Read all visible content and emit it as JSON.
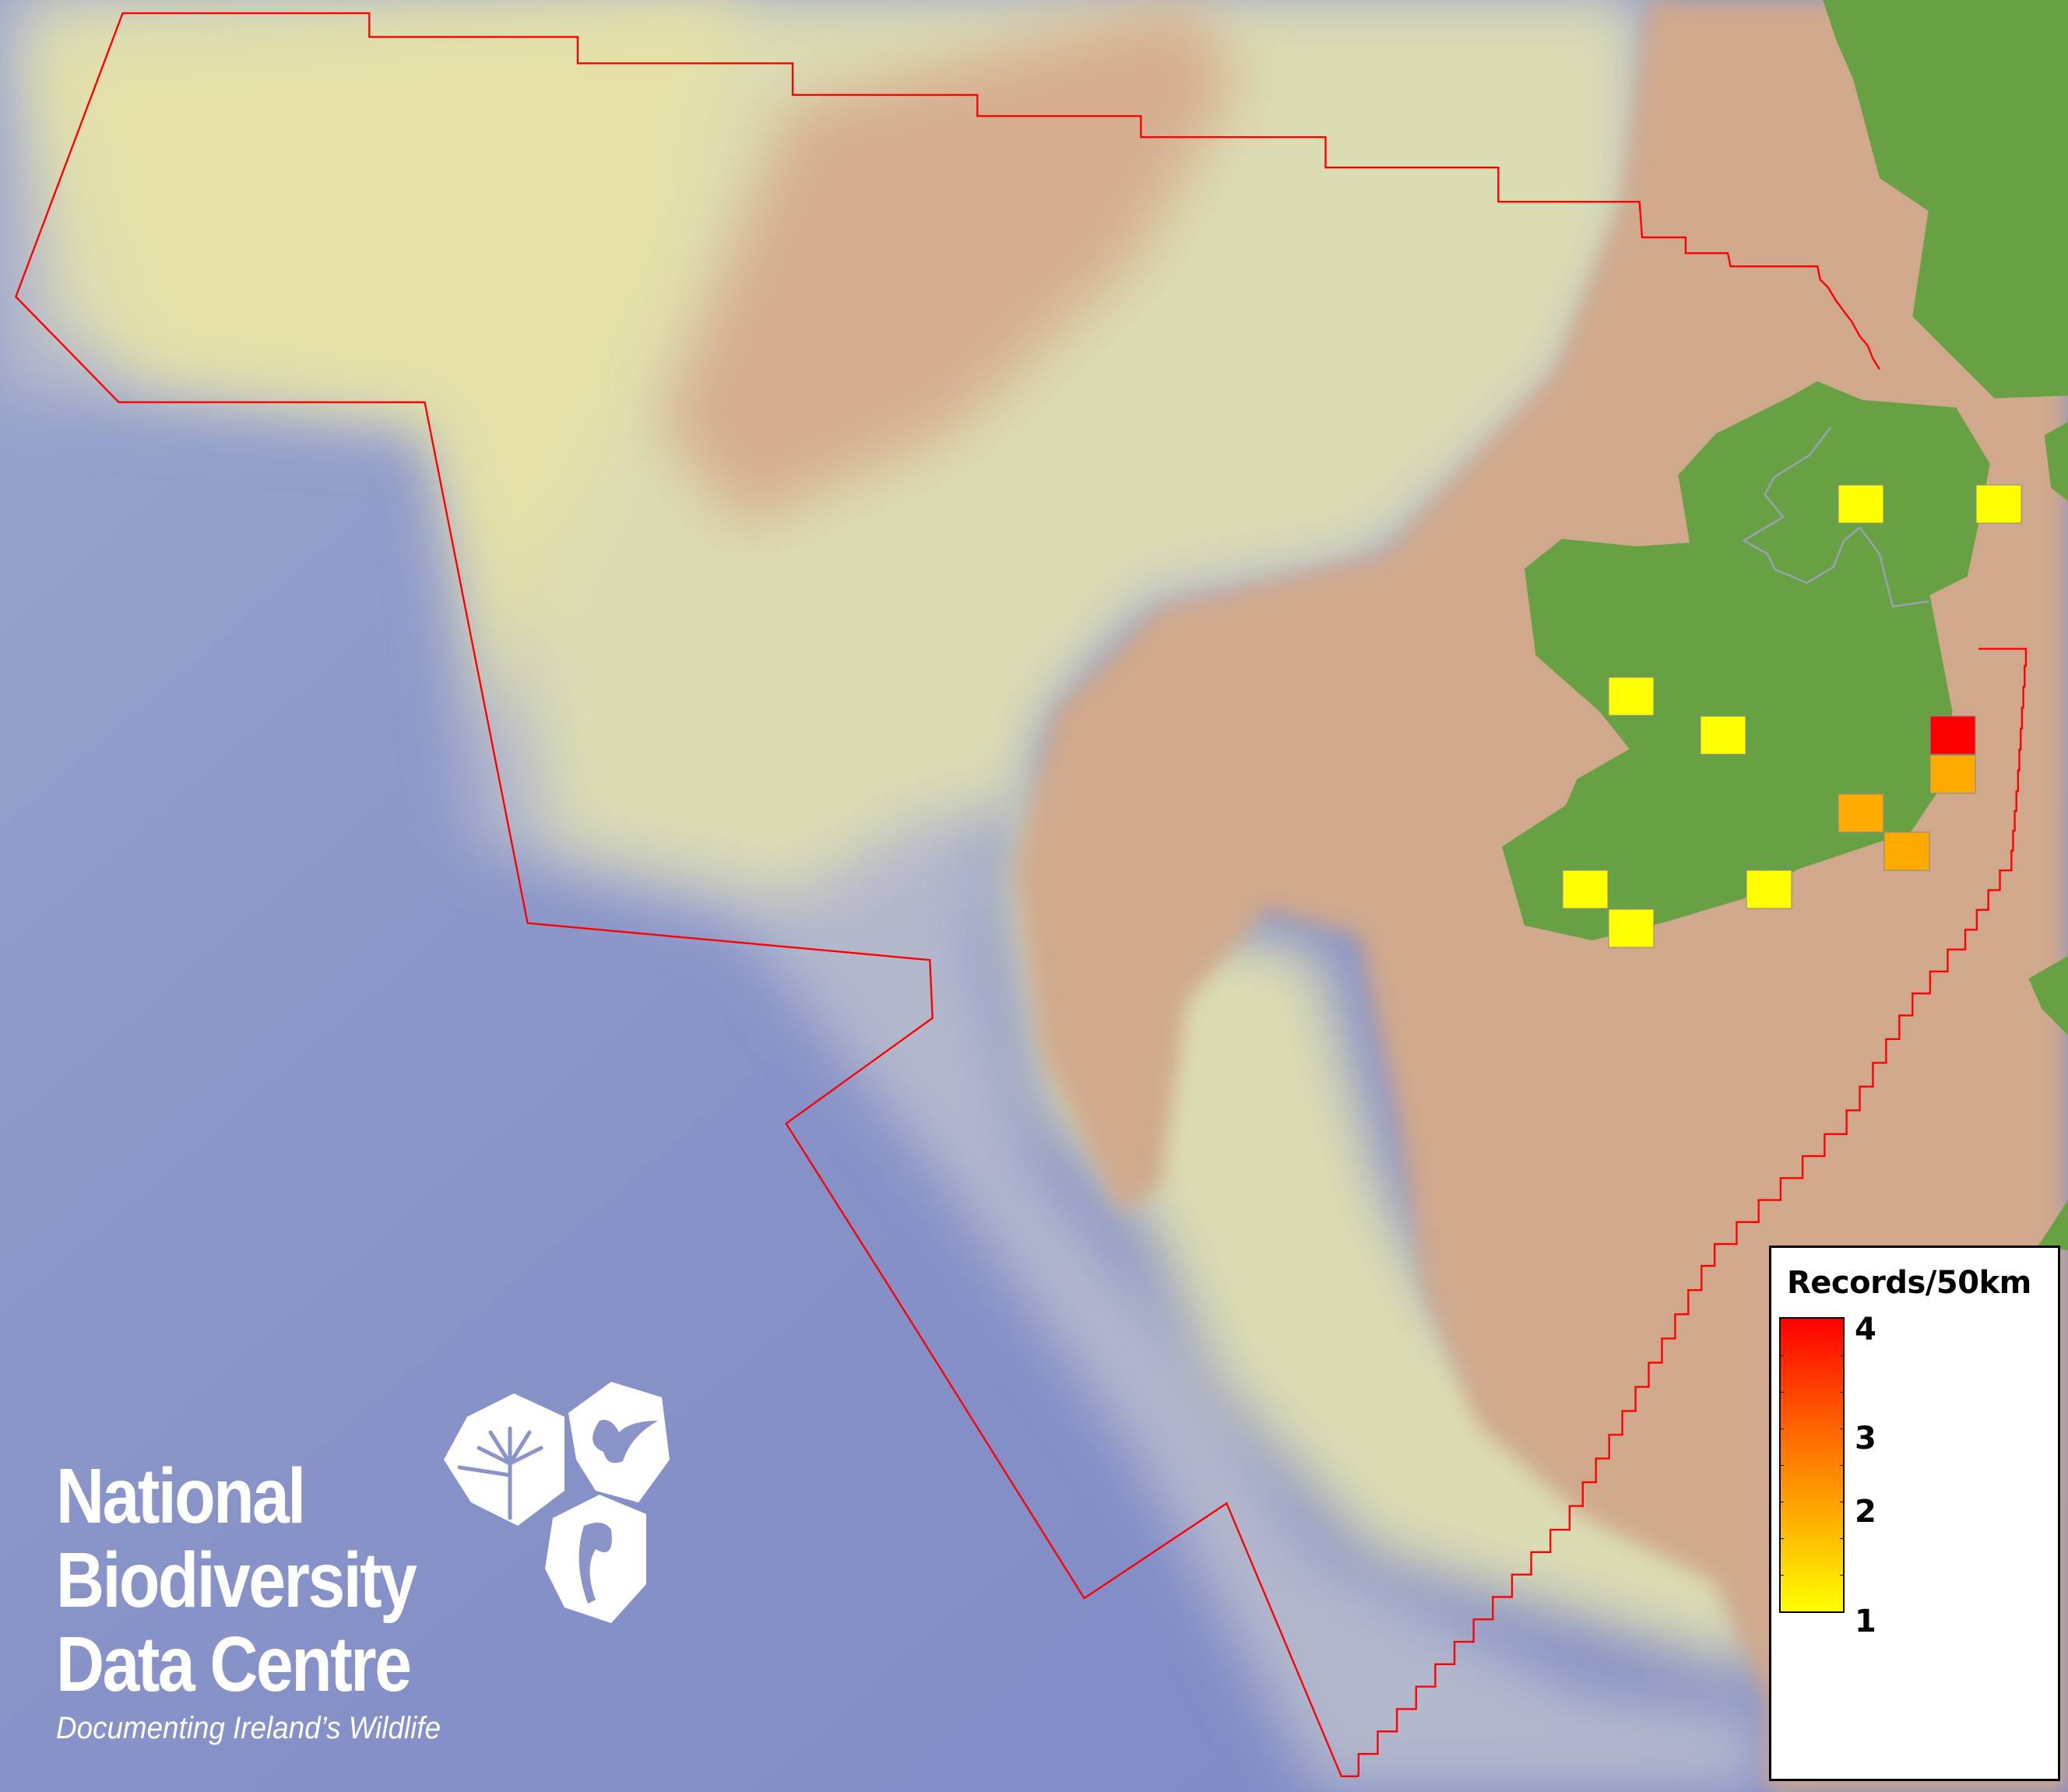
{
  "map": {
    "colors": {
      "ocean_deep": "#8590c8",
      "shelf_pale": "#dcdcb4",
      "shelf_brown": "#d0a98c",
      "land": "#68a044",
      "boundary": "#ff0000",
      "border": "#9aa0b0"
    },
    "records": [
      {
        "value": 1,
        "color": "#ffff00"
      },
      {
        "value": 1,
        "color": "#ffff00"
      },
      {
        "value": 1,
        "color": "#ffff00"
      },
      {
        "value": 1,
        "color": "#ffff00"
      },
      {
        "value": 4,
        "color": "#ff0000"
      },
      {
        "value": 2,
        "color": "#ffaa00"
      },
      {
        "value": 2,
        "color": "#ffaa00"
      },
      {
        "value": 2,
        "color": "#ffaa00"
      },
      {
        "value": 1,
        "color": "#ffff00"
      },
      {
        "value": 1,
        "color": "#ffff00"
      },
      {
        "value": 1,
        "color": "#ffff00"
      }
    ]
  },
  "legend": {
    "title": "Records/50km",
    "ticks": [
      "4",
      "3",
      "2",
      "1"
    ],
    "range": [
      1,
      4
    ],
    "colors": [
      "#ffff00",
      "#ffaa00",
      "#ff5a00",
      "#ff0000"
    ]
  },
  "logo": {
    "line1": "National",
    "line2": "Biodiversity",
    "line3": "Data Centre",
    "tagline": "Documenting Ireland’s Wildlife",
    "icons": [
      "tree-icon",
      "butterfly-icon",
      "seahorse-icon"
    ]
  }
}
